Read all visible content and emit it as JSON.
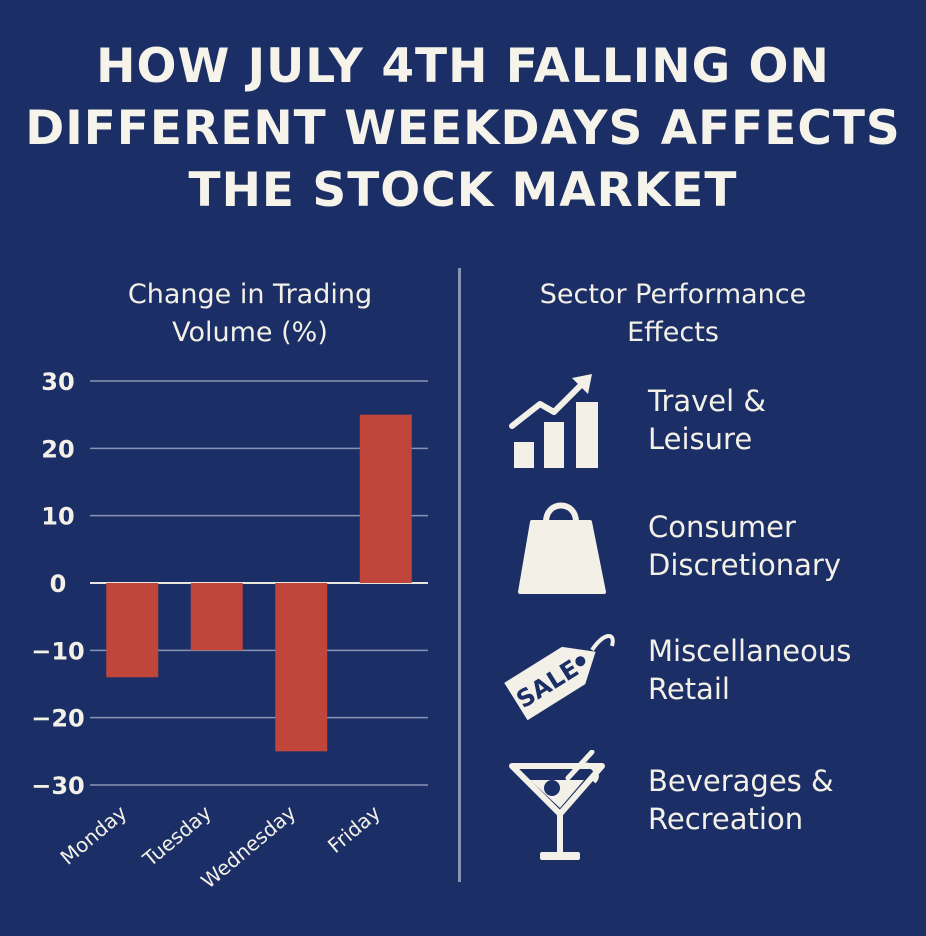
{
  "title": {
    "line1": "HOW JULY 4TH FALLING ON",
    "line2": "DIFFERENT WEEKDAYS AFFECTS",
    "line3": "THE STOCK MARKET"
  },
  "sector_panel": {
    "title": "Sector Performance Effects",
    "items": [
      {
        "icon": "bar-chart-rising-icon",
        "label": "Travel &\nLeisure"
      },
      {
        "icon": "shopping-bag-icon",
        "label": "Consumer\nDiscretionary"
      },
      {
        "icon": "sale-tag-icon",
        "label": "Miscellaneous\nRetail",
        "tag_text": "SALE"
      },
      {
        "icon": "cocktail-glass-icon",
        "label": "Beverages &\nRecreation"
      }
    ]
  },
  "colors": {
    "background": "#1b2f66",
    "bar": "#c0453a",
    "text": "#f3f0e8",
    "gridline": "#8a93b3"
  },
  "chart_data": {
    "type": "bar",
    "title": "Change in Trading Volume (%)",
    "categories": [
      "Monday",
      "Tuesday",
      "Wednesday",
      "Friday"
    ],
    "values": [
      -14,
      -10,
      -25,
      25
    ],
    "ylim": [
      -30,
      30
    ],
    "yticks": [
      30,
      20,
      10,
      0,
      -10,
      -20,
      -30
    ],
    "ytick_labels": [
      "30",
      "20",
      "10",
      "0",
      "−10",
      "−20",
      "−30"
    ],
    "grid": true
  }
}
